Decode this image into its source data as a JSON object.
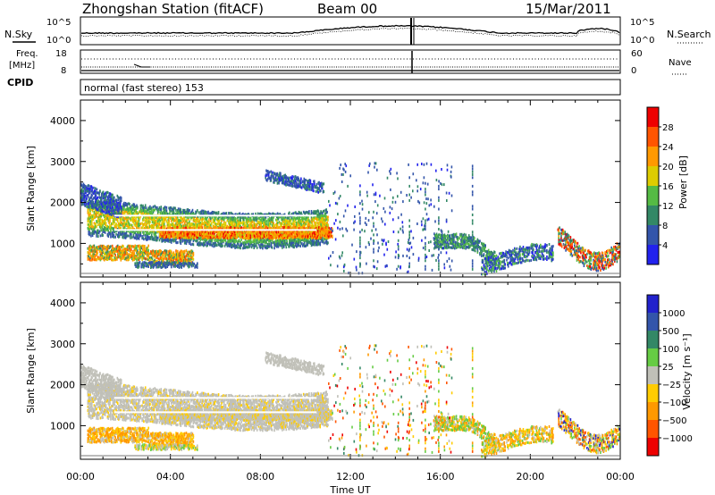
{
  "header": {
    "station": "Zhongshan Station (fitACF)",
    "beam": "Beam 00",
    "date": "15/Mar/2011"
  },
  "noise_panel": {
    "left_label": "N.Sky",
    "right_label": "N.Search",
    "left_ticks": [
      "10^5",
      "10^0"
    ],
    "right_ticks": [
      "10^5",
      "10^0"
    ]
  },
  "freq_panel": {
    "left_label_1": "Freq.",
    "left_label_2": "[MHz]",
    "right_label": "Nave",
    "left_ticks": [
      "18",
      "8"
    ],
    "right_ticks": [
      "60",
      "0"
    ]
  },
  "cpid": {
    "label": "CPID",
    "mode": "normal (fast stereo) 153"
  },
  "colors": {
    "power": [
      "#2222ee",
      "#3355aa",
      "#338866",
      "#55bb44",
      "#ddcc00",
      "#ff9900",
      "#ff5500",
      "#ee0000"
    ],
    "velocity": [
      "#2222cc",
      "#3355aa",
      "#338866",
      "#66cc44",
      "#c0c0b8",
      "#ffcc00",
      "#ff9900",
      "#ff5500",
      "#ee0000"
    ]
  },
  "chart_data": [
    {
      "type": "heatmap",
      "panel": "power",
      "xlabel": "Time UT",
      "ylabel": "Slant Range [km]",
      "x_ticks": [
        "00:00",
        "04:00",
        "08:00",
        "12:00",
        "16:00",
        "20:00",
        "00:00"
      ],
      "xlim_hours": [
        0,
        24
      ],
      "ylim_km": [
        180,
        4500
      ],
      "y_ticks": [
        1000,
        2000,
        3000,
        4000
      ],
      "colorbar_label": "Power [dB]",
      "colorbar_ticks": [
        4,
        8,
        12,
        16,
        20,
        24,
        28
      ],
      "colorbar_range": [
        0,
        30
      ]
    },
    {
      "type": "heatmap",
      "panel": "velocity",
      "xlabel": "Time UT",
      "ylabel": "Slant Range [km]",
      "x_ticks": [
        "00:00",
        "04:00",
        "08:00",
        "12:00",
        "16:00",
        "20:00",
        "00:00"
      ],
      "xlim_hours": [
        0,
        24
      ],
      "ylim_km": [
        180,
        4500
      ],
      "y_ticks": [
        1000,
        2000,
        3000,
        4000
      ],
      "colorbar_label": "Velocity [m s⁻¹]",
      "colorbar_ticks": [
        "1000",
        "500",
        "100",
        "25",
        "−25",
        "−100",
        "−500",
        "−1000"
      ]
    }
  ]
}
